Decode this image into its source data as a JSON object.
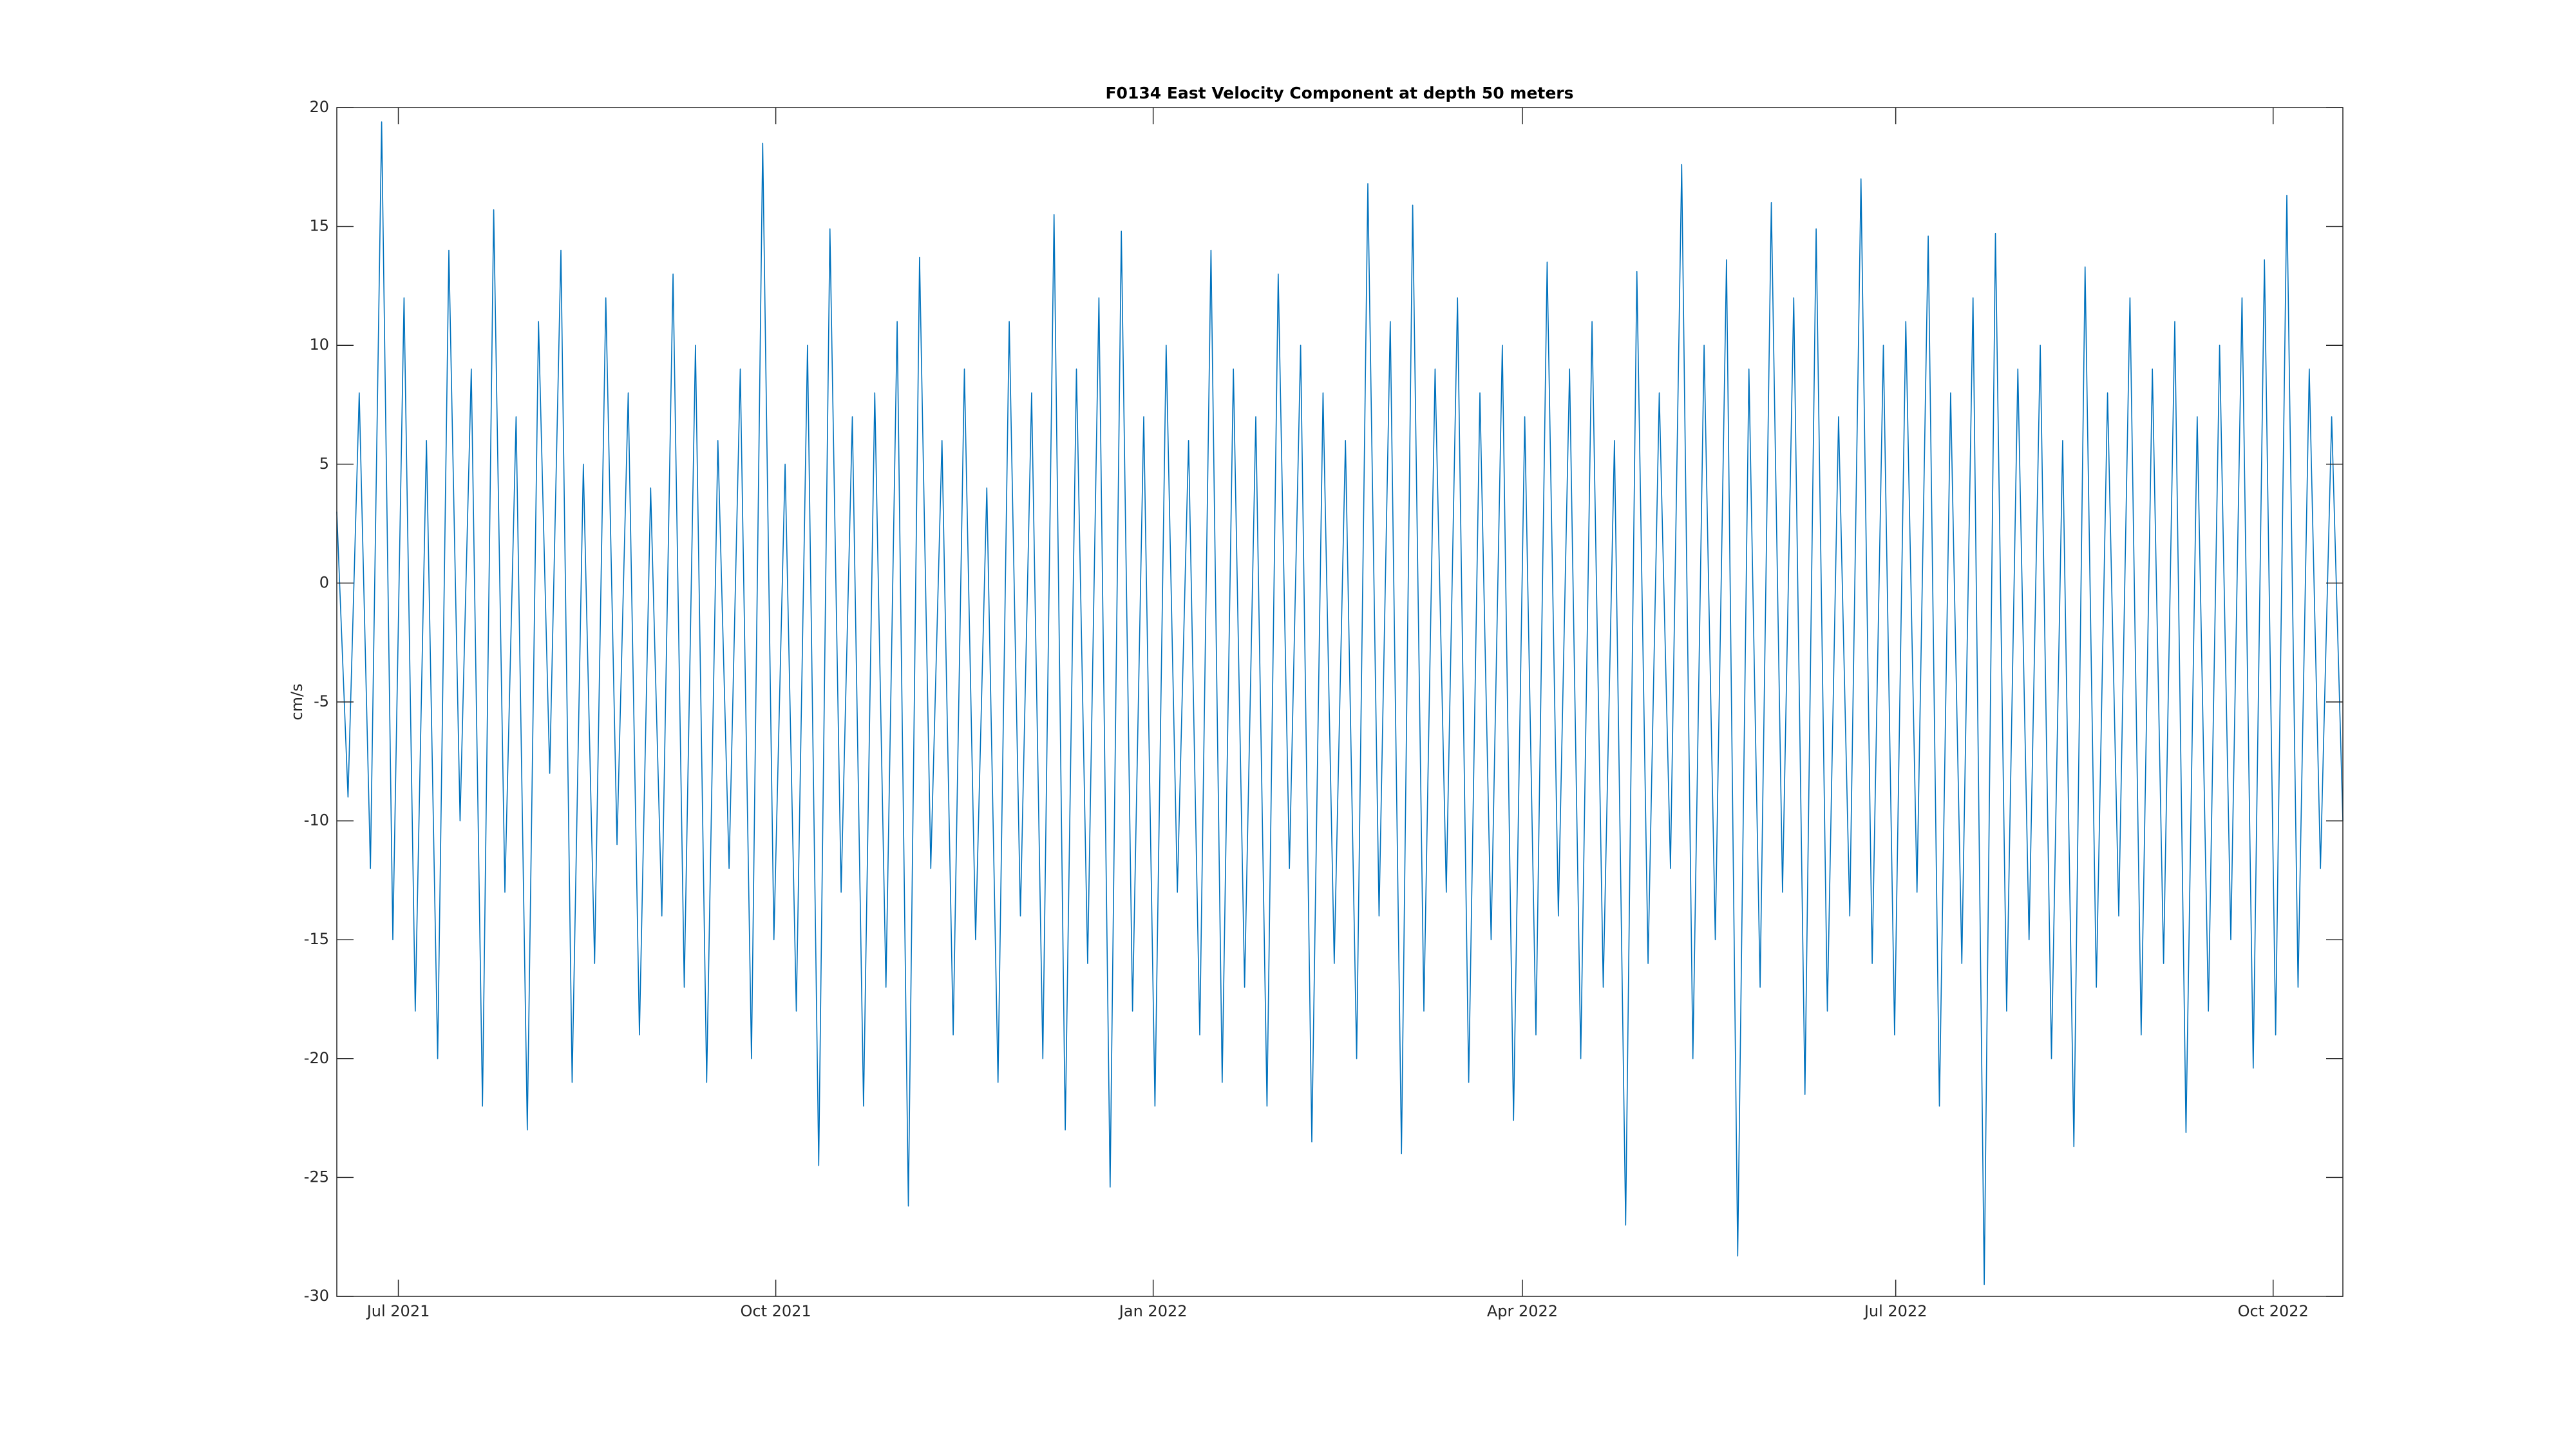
{
  "chart_data": {
    "type": "line",
    "title": "F0134 East Velocity Component at depth 50 meters",
    "ylabel": "cm/s",
    "color": "#0072BD",
    "xlim": [
      "2021-06-16",
      "2022-10-18"
    ],
    "xticks": [
      {
        "value": "2021-07-01",
        "label": "Jul 2021"
      },
      {
        "value": "2021-10-01",
        "label": "Oct 2021"
      },
      {
        "value": "2022-01-01",
        "label": "Jan 2022"
      },
      {
        "value": "2022-04-01",
        "label": "Apr 2022"
      },
      {
        "value": "2022-07-01",
        "label": "Jul 2022"
      },
      {
        "value": "2022-10-01",
        "label": "Oct 2022"
      }
    ],
    "ylim": [
      -30,
      20
    ],
    "yticks": [
      -30,
      -25,
      -20,
      -15,
      -10,
      -5,
      0,
      5,
      10,
      15,
      20
    ],
    "values": [
      3,
      -9,
      8,
      -12,
      19.4,
      -15,
      12,
      -18,
      6,
      -20,
      14,
      -10,
      9,
      -22,
      15.7,
      -13,
      7,
      -23,
      11,
      -8,
      14,
      -21,
      5,
      -16,
      12,
      -11,
      8,
      -19,
      4,
      -14,
      13,
      -17,
      10,
      -21,
      6,
      -12,
      9,
      -20,
      18.5,
      -15,
      5,
      -18,
      10,
      -24.5,
      14.9,
      -13,
      7,
      -22,
      8,
      -17,
      11,
      -26.2,
      13.7,
      -12,
      6,
      -19,
      9,
      -15,
      4,
      -21,
      11,
      -14,
      8,
      -20,
      15.5,
      -23,
      9,
      -16,
      12,
      -25.4,
      14.8,
      -18,
      7,
      -22,
      10,
      -13,
      6,
      -19,
      14,
      -21,
      9,
      -17,
      7,
      -22,
      13,
      -12,
      10,
      -23.5,
      8,
      -16,
      6,
      -20,
      16.8,
      -14,
      11,
      -24,
      15.9,
      -18,
      9,
      -13,
      12,
      -21,
      8,
      -15,
      10,
      -22.6,
      7,
      -19,
      13.5,
      -14,
      9,
      -20,
      11,
      -17,
      6,
      -27,
      13.1,
      -16,
      8,
      -12,
      17.6,
      -20,
      10,
      -15,
      13.6,
      -28.3,
      9,
      -17,
      16,
      -13,
      12,
      -21.5,
      14.9,
      -18,
      7,
      -14,
      17,
      -16,
      10,
      -19,
      11,
      -13,
      14.6,
      -22,
      8,
      -16,
      12,
      -29.5,
      14.7,
      -18,
      9,
      -15,
      10,
      -20,
      6,
      -23.7,
      13.3,
      -17,
      8,
      -14,
      12,
      -19,
      9,
      -16,
      11,
      -23.1,
      7,
      -18,
      10,
      -15,
      12,
      -20.4,
      13.6,
      -19,
      16.3,
      -17,
      9,
      -12,
      7,
      -10
    ]
  }
}
